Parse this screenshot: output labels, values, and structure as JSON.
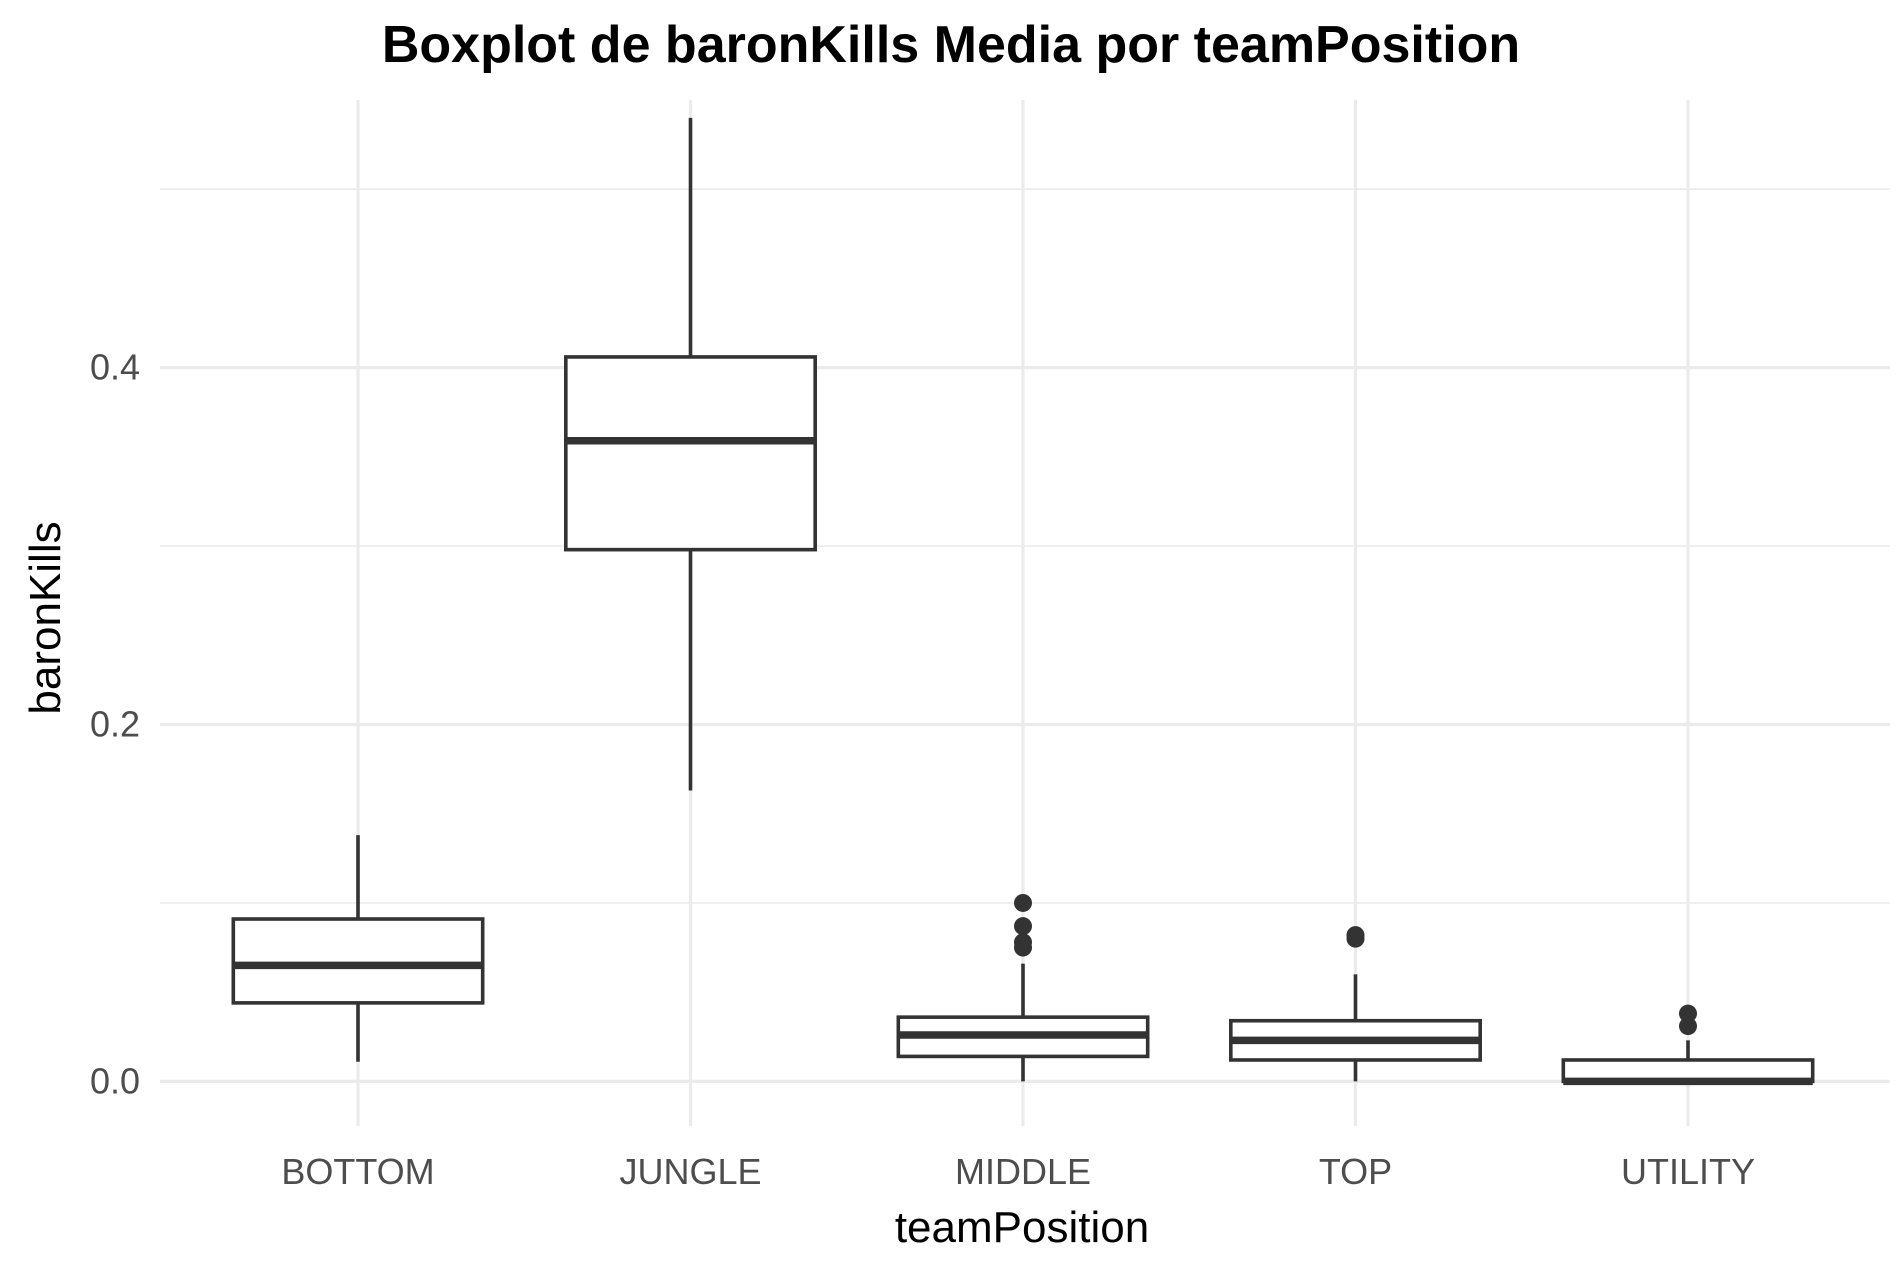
{
  "chart_data": {
    "type": "boxplot",
    "title": "Boxplot de baronKills Media por teamPosition",
    "xlabel": "teamPosition",
    "ylabel": "baronKills",
    "categories": [
      "BOTTOM",
      "JUNGLE",
      "MIDDLE",
      "TOP",
      "UTILITY"
    ],
    "ylim": [
      -0.025,
      0.55
    ],
    "y_ticks": [
      0.0,
      0.2,
      0.4
    ],
    "y_tick_labels": [
      "0.0",
      "0.2",
      "0.4"
    ],
    "y_minor_ticks": [
      0.1,
      0.3,
      0.5
    ],
    "grid": true,
    "legend": "none",
    "colors": {
      "box_stroke": "#333333",
      "box_fill": "#ffffff",
      "grid": "#ebebeb",
      "outlier": "#333333"
    },
    "boxes": [
      {
        "category": "BOTTOM",
        "whisker_low": 0.011,
        "q1": 0.044,
        "median": 0.065,
        "q3": 0.091,
        "whisker_high": 0.138,
        "outliers": []
      },
      {
        "category": "JUNGLE",
        "whisker_low": 0.163,
        "q1": 0.298,
        "median": 0.359,
        "q3": 0.406,
        "whisker_high": 0.54,
        "outliers": []
      },
      {
        "category": "MIDDLE",
        "whisker_low": 0.0,
        "q1": 0.014,
        "median": 0.026,
        "q3": 0.036,
        "whisker_high": 0.066,
        "outliers": [
          0.075,
          0.078,
          0.087,
          0.1
        ]
      },
      {
        "category": "TOP",
        "whisker_low": 0.0,
        "q1": 0.012,
        "median": 0.023,
        "q3": 0.034,
        "whisker_high": 0.06,
        "outliers": [
          0.08,
          0.082
        ]
      },
      {
        "category": "UTILITY",
        "whisker_low": 0.0,
        "q1": 0.0,
        "median": 0.0,
        "q3": 0.012,
        "whisker_high": 0.023,
        "outliers": [
          0.031,
          0.038
        ]
      }
    ]
  }
}
